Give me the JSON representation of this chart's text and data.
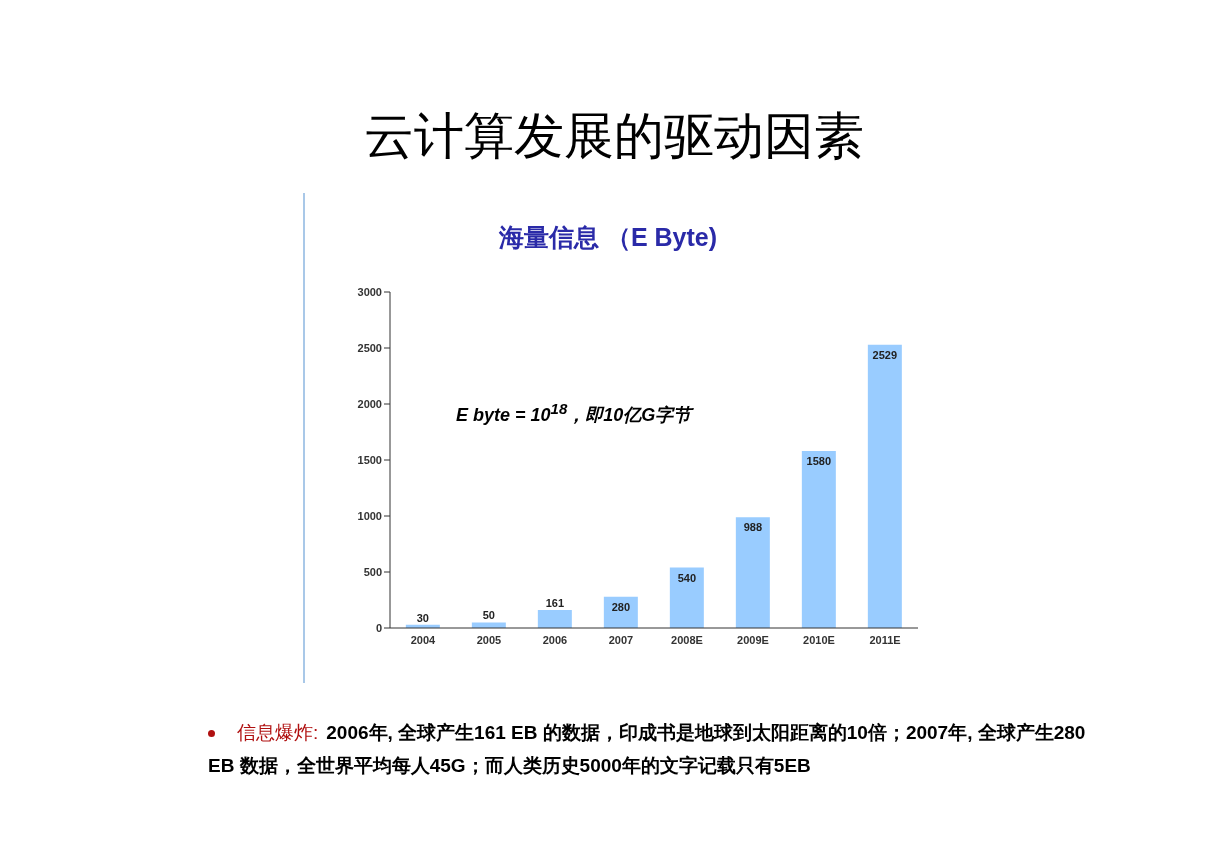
{
  "chart_data": {
    "type": "bar",
    "title": "云计算发展的驱动因素",
    "subtitle": "海量信息 （E Byte)",
    "categories": [
      "2004",
      "2005",
      "2006",
      "2007",
      "2008E",
      "2009E",
      "2010E",
      "2011E"
    ],
    "values": [
      30,
      50,
      161,
      280,
      540,
      988,
      1580,
      2529
    ],
    "color": "#99ccff",
    "ylim": [
      0,
      3000
    ],
    "yticks": [
      0,
      500,
      1000,
      1500,
      2000,
      2500,
      3000
    ],
    "data_labels": true,
    "grid": false,
    "annotations": [
      "E byte = 10$^{18}$，即10亿G字节",
      "信息爆炸:",
      "2006年, 全球产生161 EB 的数据，印成书是地球到太阳距离的10倍；2007年, 全球产生280 EB 数据，全世界平均每人45G；而人类历史5000年的文字记载只有5EB"
    ]
  }
}
